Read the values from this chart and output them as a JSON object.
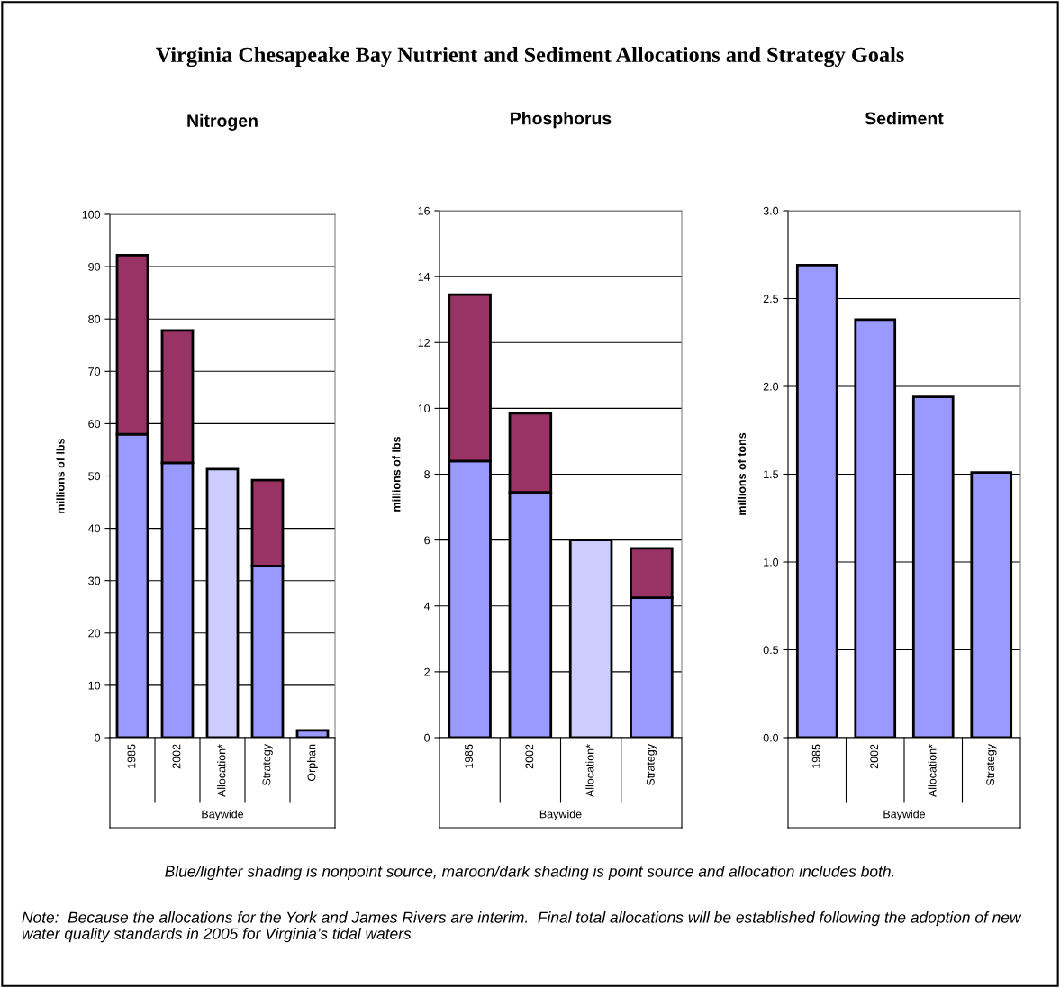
{
  "chart_data": [
    {
      "type": "bar",
      "title": "Nitrogen",
      "ylabel": "millions of lbs",
      "xlabel": "Baywide",
      "stacked": true,
      "categories": [
        "1985",
        "2002",
        "Allocation*",
        "Strategy",
        "Orphan"
      ],
      "series": [
        {
          "color": "#9999ff",
          "values": [
            58,
            52.5,
            null,
            32.8,
            1.4
          ]
        },
        {
          "color": "#993366",
          "values": [
            34.2,
            25.3,
            null,
            16.4,
            null
          ]
        },
        {
          "color": "#ccccff",
          "values": [
            null,
            null,
            51.3,
            null,
            null
          ]
        }
      ],
      "ylim": [
        0,
        100
      ],
      "yticks": [
        0,
        10,
        20,
        30,
        40,
        50,
        60,
        70,
        80,
        90,
        100
      ],
      "grid": "y",
      "legend": false,
      "annotations": [
        "Virginia Chesapeake Bay Nutrient and Sediment Allocations and Strategy Goals",
        "Blue/lighter shading is nonpoint source, maroon/dark shading is point source and allocation includes both.",
        "Note:  Because the allocations for the York and James Rivers are interim.  Final total allocations will be established following the adoption of new water quality standards in 2005 for Virginia’s tidal waters"
      ]
    },
    {
      "type": "bar",
      "title": "Phosphorus",
      "ylabel": "millions of lbs",
      "xlabel": "Baywide",
      "stacked": true,
      "categories": [
        "1985",
        "2002",
        "Allocation*",
        "Strategy"
      ],
      "series": [
        {
          "color": "#9999ff",
          "values": [
            8.4,
            7.45,
            null,
            4.25
          ]
        },
        {
          "color": "#993366",
          "values": [
            5.05,
            2.4,
            null,
            1.5
          ]
        },
        {
          "color": "#ccccff",
          "values": [
            null,
            null,
            6.0,
            null
          ]
        }
      ],
      "ylim": [
        0,
        16
      ],
      "yticks": [
        0,
        2,
        4,
        6,
        8,
        10,
        12,
        14,
        16
      ],
      "grid": "y",
      "legend": false
    },
    {
      "type": "bar",
      "title": "Sediment",
      "ylabel": "millions of tons",
      "xlabel": "Baywide",
      "categories": [
        "1985",
        "2002",
        "Allocation*",
        "Strategy"
      ],
      "series": [
        {
          "color": "#9999ff",
          "values": [
            2.69,
            2.38,
            1.94,
            1.51
          ]
        }
      ],
      "ylim": [
        0,
        3.0
      ],
      "yticks": [
        {
          "value": 0,
          "label": "0.0"
        },
        {
          "value": 0.5,
          "label": "0.5"
        },
        {
          "value": 1.0,
          "label": "1.0"
        },
        {
          "value": 1.5,
          "label": "1.5"
        },
        {
          "value": 2.0,
          "label": "2.0"
        },
        {
          "value": 2.5,
          "label": "2.5"
        },
        {
          "value": 3.0,
          "label": "3.0"
        }
      ],
      "grid": "y",
      "legend": false
    }
  ]
}
